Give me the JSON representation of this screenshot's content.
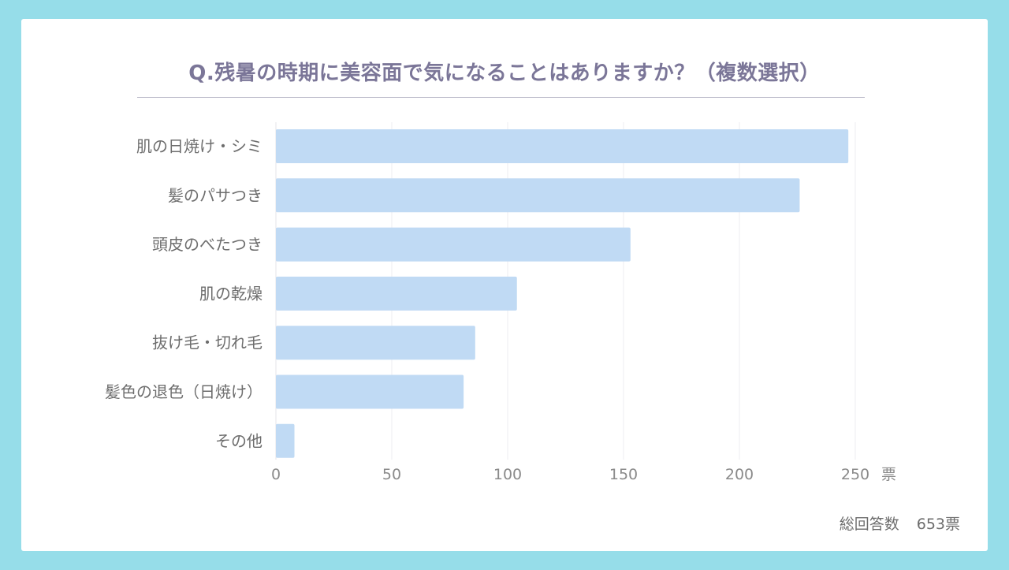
{
  "chart_data": {
    "type": "bar",
    "orientation": "horizontal",
    "title": "Q.残暑の時期に美容面で気になることはありますか？（複数選択）",
    "categories": [
      "肌の日焼け・シミ",
      "髪のパサつき",
      "頭皮のべたつき",
      "肌の乾燥",
      "抜け毛・切れ毛",
      "髪色の退色（日焼け）",
      "その他"
    ],
    "values": [
      247,
      226,
      153,
      104,
      86,
      81,
      8
    ],
    "xlim": [
      0,
      250
    ],
    "xticks": [
      0,
      50,
      100,
      150,
      200,
      250
    ],
    "xlabel": "票",
    "ylabel": "",
    "grid": true,
    "bar_color": "#c0daf4"
  },
  "footer": {
    "total_label": "総回答数",
    "total_value": "653票"
  }
}
